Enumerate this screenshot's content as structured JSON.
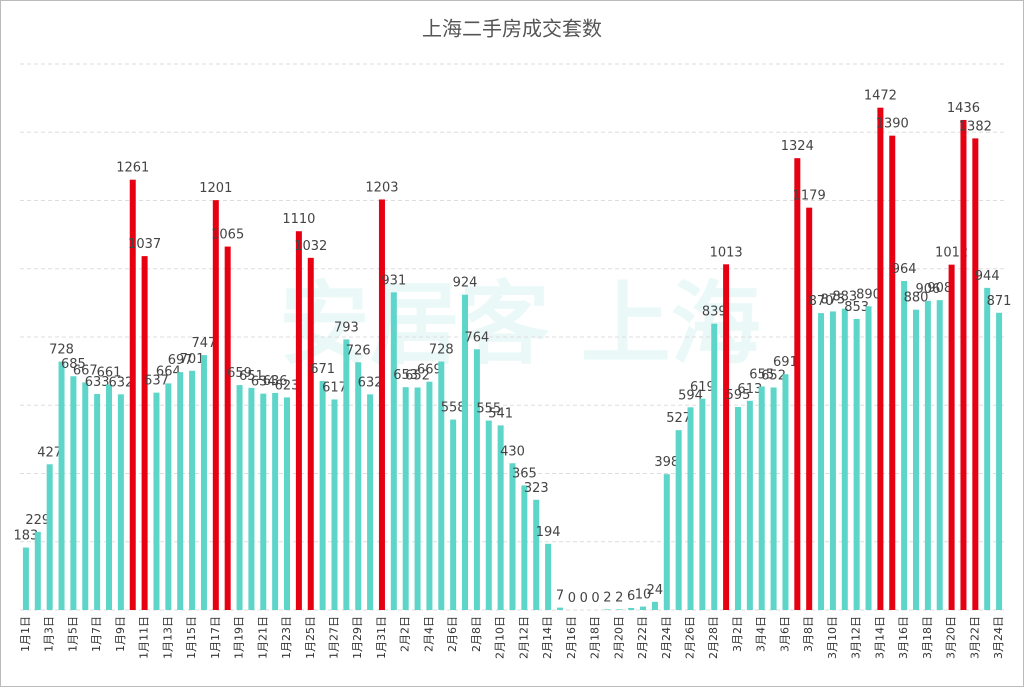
{
  "chart_data": {
    "type": "bar",
    "title": "上海二手房成交套数",
    "watermark": "安居客 上海",
    "categories": [
      "1月1日",
      null,
      "1月3日",
      null,
      "1月5日",
      null,
      "1月7日",
      null,
      "1月9日",
      null,
      "1月11日",
      null,
      "1月13日",
      null,
      "1月15日",
      null,
      "1月17日",
      null,
      "1月19日",
      null,
      "1月21日",
      null,
      "1月23日",
      null,
      "1月25日",
      null,
      "1月27日",
      null,
      "1月29日",
      null,
      "1月31日",
      null,
      "2月2日",
      null,
      "2月4日",
      null,
      "2月6日",
      null,
      "2月8日",
      null,
      "2月10日",
      null,
      "2月12日",
      null,
      "2月14日",
      null,
      "2月16日",
      null,
      "2月18日",
      null,
      "2月20日",
      null,
      "2月22日",
      null,
      "2月24日",
      null,
      "2月26日",
      null,
      "2月28日",
      null,
      "3月2日",
      null,
      "3月4日",
      null,
      "3月6日",
      null,
      "3月8日",
      null,
      "3月10日",
      null,
      "3月12日",
      null,
      "3月14日",
      null,
      "3月16日",
      null,
      "3月18日",
      null,
      "3月20日",
      null,
      "3月22日",
      null,
      "3月24日"
    ],
    "values": [
      183,
      229,
      427,
      728,
      685,
      667,
      633,
      661,
      632,
      1261,
      1037,
      637,
      664,
      697,
      701,
      747,
      1201,
      1065,
      659,
      651,
      634,
      636,
      623,
      1110,
      1032,
      671,
      617,
      793,
      726,
      632,
      1203,
      931,
      653,
      652,
      669,
      728,
      558,
      924,
      764,
      555,
      541,
      430,
      365,
      323,
      194,
      7,
      0,
      0,
      0,
      2,
      2,
      6,
      10,
      24,
      398,
      527,
      594,
      619,
      839,
      1013,
      595,
      613,
      655,
      652,
      691,
      1324,
      1179,
      870,
      875,
      883,
      853,
      890,
      1472,
      1390,
      964,
      880,
      906,
      908,
      1012,
      1436,
      1382,
      944,
      871
    ],
    "colors": [
      "#5dd5c9",
      "#5dd5c9",
      "#5dd5c9",
      "#5dd5c9",
      "#5dd5c9",
      "#5dd5c9",
      "#5dd5c9",
      "#5dd5c9",
      "#5dd5c9",
      "#e60012",
      "#e60012",
      "#5dd5c9",
      "#5dd5c9",
      "#5dd5c9",
      "#5dd5c9",
      "#5dd5c9",
      "#e60012",
      "#e60012",
      "#5dd5c9",
      "#5dd5c9",
      "#5dd5c9",
      "#5dd5c9",
      "#5dd5c9",
      "#e60012",
      "#e60012",
      "#5dd5c9",
      "#5dd5c9",
      "#5dd5c9",
      "#5dd5c9",
      "#5dd5c9",
      "#e60012",
      "#5dd5c9",
      "#5dd5c9",
      "#5dd5c9",
      "#5dd5c9",
      "#5dd5c9",
      "#5dd5c9",
      "#5dd5c9",
      "#5dd5c9",
      "#5dd5c9",
      "#5dd5c9",
      "#5dd5c9",
      "#5dd5c9",
      "#5dd5c9",
      "#5dd5c9",
      "#5dd5c9",
      "#5dd5c9",
      "#5dd5c9",
      "#5dd5c9",
      "#5dd5c9",
      "#5dd5c9",
      "#5dd5c9",
      "#5dd5c9",
      "#5dd5c9",
      "#5dd5c9",
      "#5dd5c9",
      "#5dd5c9",
      "#5dd5c9",
      "#5dd5c9",
      "#e60012",
      "#5dd5c9",
      "#5dd5c9",
      "#5dd5c9",
      "#5dd5c9",
      "#5dd5c9",
      "#e60012",
      "#e60012",
      "#5dd5c9",
      "#5dd5c9",
      "#5dd5c9",
      "#5dd5c9",
      "#5dd5c9",
      "#e60012",
      "#e60012",
      "#5dd5c9",
      "#5dd5c9",
      "#5dd5c9",
      "#5dd5c9",
      "#e60012",
      "#e60012",
      "#e60012",
      "#5dd5c9",
      "#5dd5c9"
    ],
    "ylim": [
      0,
      1600
    ],
    "yticks": [
      0,
      200,
      400,
      600,
      800,
      1000,
      1200,
      1400,
      1600
    ],
    "grid": true
  }
}
